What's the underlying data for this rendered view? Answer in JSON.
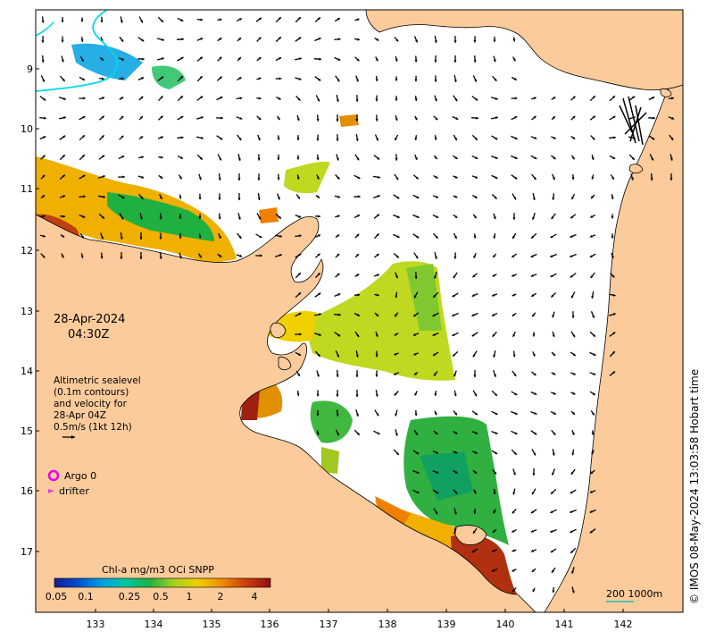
{
  "map": {
    "date": "28-Apr-2024",
    "time": "04:30Z",
    "legend_text": [
      "Altimetric sealevel",
      "(0.1m contours)",
      "and velocity for",
      "28-Apr 04Z",
      "0.5m/s (1kt 12h)"
    ],
    "argo_label": "Argo 0",
    "drifter_label": "drifter",
    "colorbar": {
      "title": "Chl-a mg/m3 OCi SNPP",
      "ticks": [
        "0.05",
        "0.1",
        "0.25",
        "0.5",
        "1",
        "2",
        "4"
      ],
      "colors": [
        "#1a1a8f",
        "#0050d0",
        "#00a0e0",
        "#00c8a0",
        "#20b040",
        "#a0d020",
        "#f0d000",
        "#f09000",
        "#d04010",
        "#901010"
      ]
    },
    "scale_label": "200  1000m",
    "credit": "© IMOS 08-May-2024 13:03:58 Hobart time",
    "x_ticks": [
      "133",
      "134",
      "135",
      "136",
      "137",
      "138",
      "139",
      "140",
      "141",
      "142"
    ],
    "y_ticks": [
      "9",
      "10",
      "11",
      "12",
      "13",
      "14",
      "15",
      "16",
      "17"
    ],
    "colors": {
      "land": "#fbcb9b",
      "argo": "#e800e8",
      "drifter": "#e040e0",
      "coast": "#000000",
      "path": "#00d8e8"
    }
  }
}
